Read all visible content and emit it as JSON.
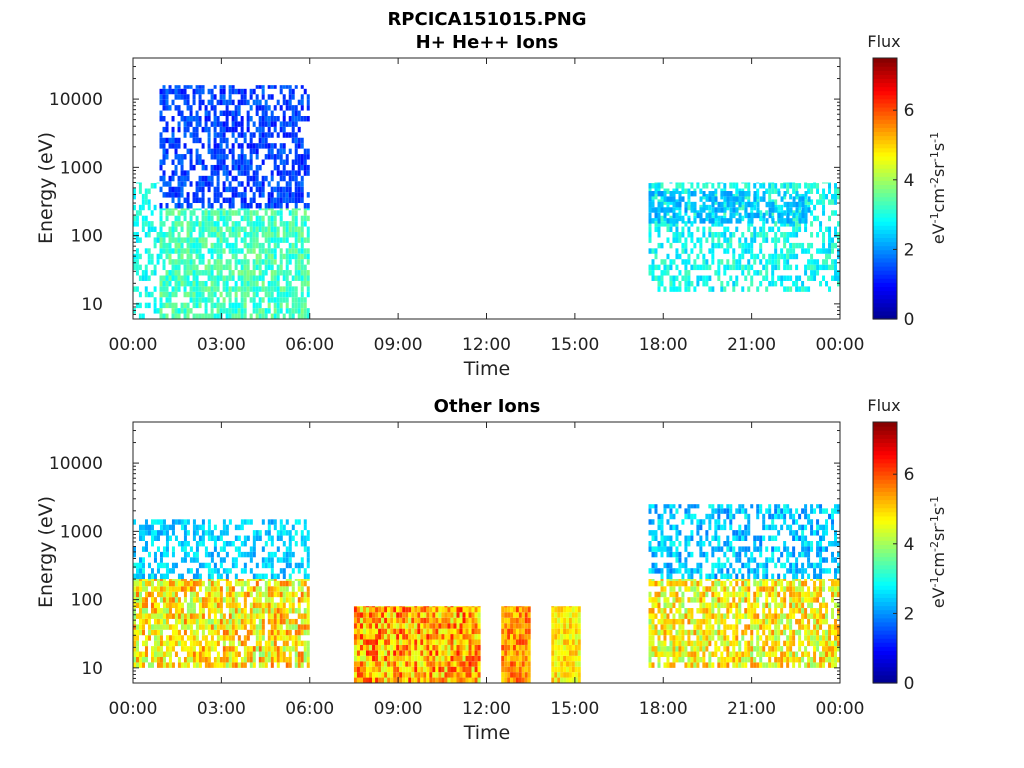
{
  "figure": {
    "title": "RPCICA151015.PNG"
  },
  "colors": {
    "jet": [
      "#00008f",
      "#0000ff",
      "#0080ff",
      "#00ffff",
      "#80ff80",
      "#ffff00",
      "#ff8000",
      "#ff0000",
      "#800000"
    ]
  },
  "chart_data": [
    {
      "type": "heatmap",
      "title": "H+ He++ Ions",
      "xlabel": "Time",
      "ylabel": "Energy (eV)",
      "x_tick_labels": [
        "00:00",
        "03:00",
        "06:00",
        "09:00",
        "12:00",
        "15:00",
        "18:00",
        "21:00",
        "00:00"
      ],
      "x_range_hours": [
        0,
        24
      ],
      "y_scale": "log",
      "y_range_eV": [
        6,
        40000
      ],
      "y_tick_values": [
        10,
        100,
        1000,
        10000
      ],
      "y_tick_labels": [
        "10",
        "100",
        "1000",
        "10000"
      ],
      "colorbar": {
        "title": "Flux",
        "units": "eV-1cm-2sr-1s-1",
        "min": 0,
        "max": 7.5,
        "tick_values": [
          0,
          2,
          4,
          6
        ],
        "tick_labels": [
          "0",
          "2",
          "4",
          "6"
        ]
      },
      "grid": false,
      "regions": [
        {
          "t_start": 0.0,
          "t_end": 0.9,
          "e_min": 6,
          "e_max": 600,
          "flux_low": 2.6,
          "flux_high": 3.3,
          "density": 0.45
        },
        {
          "t_start": 0.9,
          "t_end": 6.0,
          "e_min": 6,
          "e_max": 250,
          "flux_low": 2.8,
          "flux_high": 3.8,
          "density": 0.75
        },
        {
          "t_start": 0.9,
          "t_end": 6.0,
          "e_min": 250,
          "e_max": 16000,
          "flux_low": 1.0,
          "flux_high": 1.8,
          "density": 0.6
        },
        {
          "t_start": 17.5,
          "t_end": 24.0,
          "e_min": 15,
          "e_max": 600,
          "flux_low": 2.4,
          "flux_high": 3.4,
          "density": 0.5
        },
        {
          "t_start": 17.5,
          "t_end": 23.0,
          "e_min": 150,
          "e_max": 450,
          "flux_low": 2.0,
          "flux_high": 2.5,
          "density": 0.55
        }
      ]
    },
    {
      "type": "heatmap",
      "title": "Other Ions",
      "xlabel": "Time",
      "ylabel": "Energy (eV)",
      "x_tick_labels": [
        "00:00",
        "03:00",
        "06:00",
        "09:00",
        "12:00",
        "15:00",
        "18:00",
        "21:00",
        "00:00"
      ],
      "x_range_hours": [
        0,
        24
      ],
      "y_scale": "log",
      "y_range_eV": [
        6,
        40000
      ],
      "y_tick_values": [
        10,
        100,
        1000,
        10000
      ],
      "y_tick_labels": [
        "10",
        "100",
        "1000",
        "10000"
      ],
      "colorbar": {
        "title": "Flux",
        "units": "eV-1cm-2sr-1s-1",
        "min": 0,
        "max": 7.5,
        "tick_values": [
          0,
          2,
          4,
          6
        ],
        "tick_labels": [
          "0",
          "2",
          "4",
          "6"
        ]
      },
      "grid": false,
      "regions": [
        {
          "t_start": 0.0,
          "t_end": 6.0,
          "e_min": 10,
          "e_max": 200,
          "flux_low": 3.8,
          "flux_high": 5.8,
          "density": 0.8
        },
        {
          "t_start": 0.0,
          "t_end": 6.0,
          "e_min": 200,
          "e_max": 1500,
          "flux_low": 2.0,
          "flux_high": 3.0,
          "density": 0.5
        },
        {
          "t_start": 7.5,
          "t_end": 11.8,
          "e_min": 6,
          "e_max": 80,
          "flux_low": 4.2,
          "flux_high": 6.4,
          "density": 1.0
        },
        {
          "t_start": 12.5,
          "t_end": 13.5,
          "e_min": 6,
          "e_max": 80,
          "flux_low": 4.8,
          "flux_high": 6.2,
          "density": 1.0
        },
        {
          "t_start": 14.2,
          "t_end": 15.2,
          "e_min": 6,
          "e_max": 80,
          "flux_low": 4.2,
          "flux_high": 5.4,
          "density": 1.0
        },
        {
          "t_start": 17.5,
          "t_end": 24.0,
          "e_min": 10,
          "e_max": 200,
          "flux_low": 3.8,
          "flux_high": 5.6,
          "density": 0.75
        },
        {
          "t_start": 17.5,
          "t_end": 24.0,
          "e_min": 200,
          "e_max": 2500,
          "flux_low": 1.8,
          "flux_high": 3.0,
          "density": 0.5
        }
      ]
    }
  ]
}
